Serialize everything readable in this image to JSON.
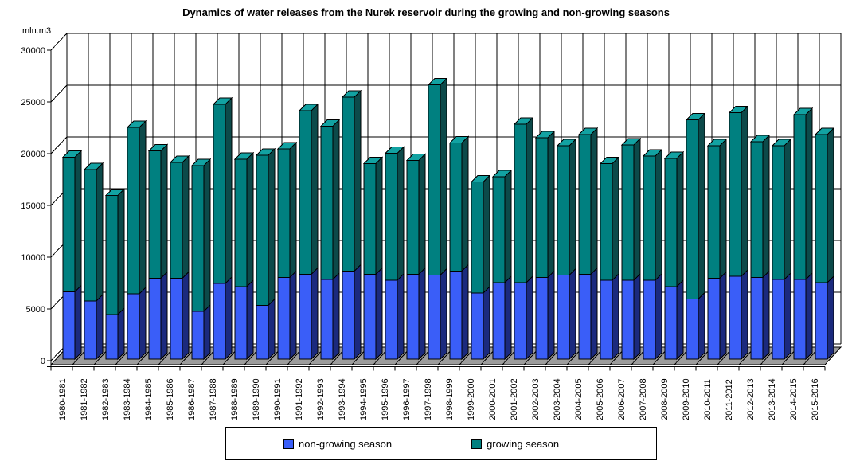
{
  "title": "Dynamics of water releases from the Nurek reservoir during the growing and non-growing seasons",
  "y_axis": {
    "unit_label": "mln.m3",
    "tick_labels": [
      "30000",
      "25000",
      "20000",
      "15000",
      "10000",
      "5000",
      "0"
    ],
    "min": 0,
    "max": 30000,
    "step": 5000
  },
  "legend": {
    "items": [
      {
        "label": "non-growing season",
        "color": "#3a5ef8"
      },
      {
        "label": "growing season",
        "color": "#008080"
      }
    ]
  },
  "colors": {
    "non_growing_front": "#3a5ef8",
    "non_growing_side": "#1b2a7e",
    "growing_front": "#008080",
    "growing_side": "#0c4a4a",
    "growing_top": "#12a2a2",
    "floor": "#9c9c9c",
    "line": "#000000",
    "background": "#ffffff"
  },
  "chart_data": {
    "type": "bar",
    "stacked": true,
    "effect": "3d",
    "title": "Dynamics of water releases from the Nurek reservoir during the growing and non-growing seasons",
    "xlabel": "",
    "ylabel": "mln.m3",
    "ylim": [
      0,
      30000
    ],
    "grid": true,
    "legend_position": "bottom",
    "categories": [
      "1980-1981",
      "1981-1982",
      "1982-1983",
      "1983-1984",
      "1984-1985",
      "1985-1986",
      "1986-1987",
      "1987-1988",
      "1988-1989",
      "1989-1990",
      "1990-1991",
      "1991-1992",
      "1992-1993",
      "1993-1994",
      "1994-1995",
      "1995-1996",
      "1996-1997",
      "1997-1998",
      "1998-1999",
      "1999-2000",
      "2000-2001",
      "2001-2002",
      "2002-2003",
      "2003-2004",
      "2004-2005",
      "2005-2006",
      "2006-2007",
      "2007-2008",
      "2008-2009",
      "2009-2010",
      "2010-2011",
      "2011-2012",
      "2012-2013",
      "2013-2014",
      "2014-2015",
      "2015-2016"
    ],
    "series": [
      {
        "name": "non-growing season",
        "values": [
          6500,
          5600,
          4300,
          6300,
          7800,
          7800,
          4600,
          7300,
          7000,
          5200,
          7900,
          8200,
          7700,
          8500,
          8200,
          7600,
          8200,
          8100,
          8500,
          6400,
          7400,
          7400,
          7900,
          8100,
          8200,
          7600,
          7600,
          7600,
          7000,
          5800,
          7800,
          8000,
          7900,
          7700,
          7700,
          7400
        ]
      },
      {
        "name": "growing season",
        "values": [
          13000,
          12700,
          11500,
          16100,
          12300,
          11200,
          14100,
          17300,
          12300,
          14500,
          12400,
          15800,
          14800,
          16800,
          10700,
          12300,
          11000,
          18400,
          12400,
          10700,
          10200,
          15300,
          13500,
          12500,
          13500,
          11300,
          13100,
          12000,
          12400,
          17300,
          12800,
          15800,
          13100,
          12900,
          15900,
          14300
        ]
      }
    ]
  }
}
